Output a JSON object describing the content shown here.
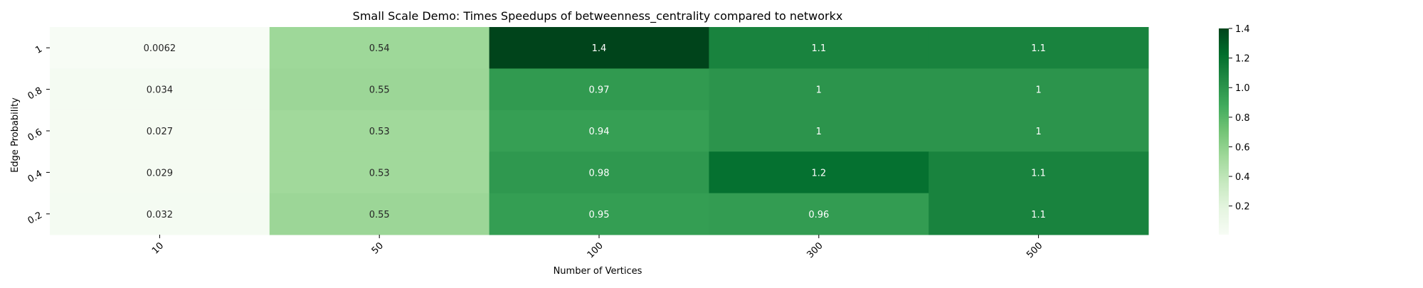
{
  "chart_data": {
    "type": "heatmap",
    "title": "Small Scale Demo: Times Speedups of betweenness_centrality compared to networkx",
    "xlabel": "Number of Vertices",
    "ylabel": "Edge Probability",
    "x_categories": [
      "10",
      "50",
      "100",
      "300",
      "500"
    ],
    "y_categories": [
      "1",
      "0.8",
      "0.6",
      "0.4",
      "0.2"
    ],
    "values": [
      [
        0.0062,
        0.54,
        1.4,
        1.1,
        1.1
      ],
      [
        0.034,
        0.55,
        0.97,
        1.0,
        1.0
      ],
      [
        0.027,
        0.53,
        0.94,
        1.0,
        1.0
      ],
      [
        0.029,
        0.53,
        0.98,
        1.2,
        1.1
      ],
      [
        0.032,
        0.55,
        0.95,
        0.96,
        1.1
      ]
    ],
    "cell_labels": [
      [
        "0.0062",
        "0.54",
        "1.4",
        "1.1",
        "1.1"
      ],
      [
        "0.034",
        "0.55",
        "0.97",
        "1",
        "1"
      ],
      [
        "0.027",
        "0.53",
        "0.94",
        "1",
        "1"
      ],
      [
        "0.029",
        "0.53",
        "0.98",
        "1.2",
        "1.1"
      ],
      [
        "0.032",
        "0.55",
        "0.95",
        "0.96",
        "1.1"
      ]
    ],
    "colormap": "Greens",
    "color_range": [
      0.0062,
      1.4
    ],
    "colorbar_ticks": [
      "0.2",
      "0.4",
      "0.6",
      "0.8",
      "1.0",
      "1.2",
      "1.4"
    ],
    "colorbar_tick_values": [
      0.2,
      0.4,
      0.6,
      0.8,
      1.0,
      1.2,
      1.4
    ],
    "colors": {
      "low": "#f7fcf5",
      "high": "#00441b",
      "text_dark": "#262626",
      "text_light": "#ffffff"
    }
  }
}
